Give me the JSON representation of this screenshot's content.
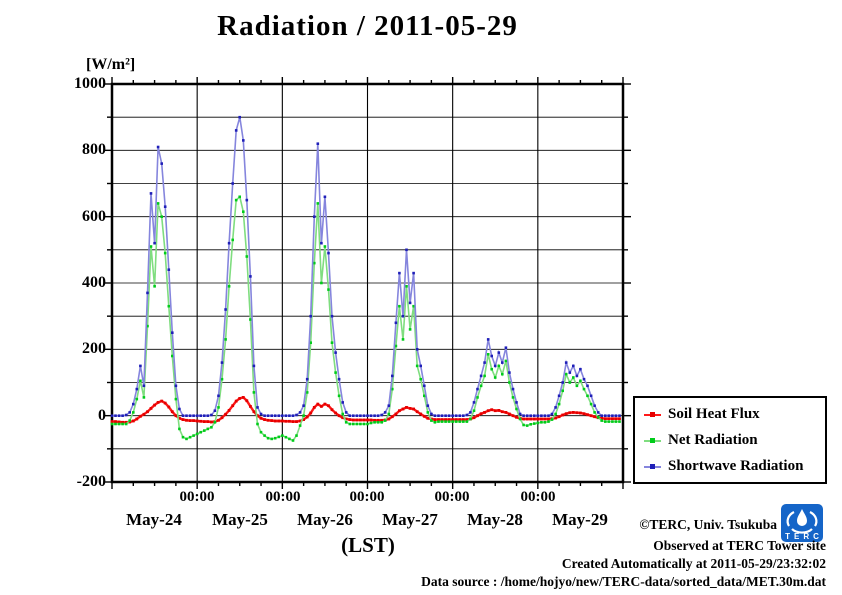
{
  "header": {
    "title": "Radiation / 2011-05-29"
  },
  "footer": {
    "lines": [
      "©TERC, Univ. Tsukuba",
      "Observed at TERC Tower site",
      "Created Automatically at 2011-05-29/23:32:02",
      "Data source : /home/hojyo/new/TERC-data/sorted_data/MET.30m.dat"
    ],
    "logo_text": "TERC",
    "logo_color": "#1565c8"
  },
  "chart_data": {
    "type": "line",
    "title": "Radiation / 2011-05-29",
    "ylabel": "[W/m²]",
    "xlabel": "(LST)",
    "ylim": [
      -200,
      1000
    ],
    "y_major_step": 200,
    "y_minor_step": 100,
    "grid": true,
    "legend_position": "right-bottom-outside",
    "points_per_day": 24,
    "x_unit": "hour",
    "xtick_label": "00:00",
    "day_labels": [
      "May-24",
      "May-25",
      "May-26",
      "May-27",
      "May-28",
      "May-29"
    ],
    "ytick_labels": [
      "1000",
      "800",
      "600",
      "400",
      "200",
      "0",
      "-200"
    ],
    "series": [
      {
        "name": "Soil Heat Flux",
        "line_color": "#ff1a1a",
        "marker_color": "#e60000",
        "line_width": 2.4,
        "marker_size": 2.8,
        "values": [
          -18,
          -18,
          -19,
          -20,
          -20,
          -19,
          -16,
          -10,
          -2,
          4,
          12,
          22,
          32,
          40,
          44,
          38,
          26,
          12,
          0,
          -8,
          -12,
          -14,
          -15,
          -15,
          -16,
          -17,
          -18,
          -18,
          -19,
          -18,
          -14,
          -6,
          4,
          16,
          30,
          44,
          52,
          55,
          45,
          28,
          12,
          0,
          -8,
          -12,
          -14,
          -15,
          -16,
          -16,
          -16,
          -17,
          -17,
          -18,
          -18,
          -16,
          -12,
          -4,
          8,
          25,
          35,
          28,
          35,
          30,
          18,
          8,
          0,
          -6,
          -10,
          -12,
          -13,
          -13,
          -13,
          -13,
          -13,
          -13,
          -14,
          -14,
          -14,
          -13,
          -10,
          -3,
          5,
          15,
          20,
          25,
          22,
          20,
          12,
          5,
          -2,
          -8,
          -10,
          -12,
          -12,
          -12,
          -12,
          -12,
          -12,
          -12,
          -12,
          -12,
          -12,
          -10,
          -6,
          0,
          6,
          10,
          15,
          18,
          15,
          16,
          12,
          10,
          5,
          0,
          -5,
          -8,
          -10,
          -10,
          -10,
          -10,
          -10,
          -10,
          -10,
          -10,
          -9,
          -7,
          -3,
          2,
          6,
          9,
          10,
          9,
          8,
          6,
          3,
          0,
          -3,
          -6,
          -8,
          -9,
          -9,
          -9,
          -9,
          -9
        ]
      },
      {
        "name": "Net Radiation",
        "line_color": "#7fdd7f",
        "marker_color": "#00cc1a",
        "line_width": 1.6,
        "marker_size": 2.6,
        "values": [
          -25,
          -25,
          -25,
          -25,
          -25,
          -15,
          10,
          50,
          105,
          55,
          270,
          510,
          390,
          640,
          600,
          490,
          330,
          180,
          50,
          -40,
          -65,
          -70,
          -65,
          -60,
          -55,
          -50,
          -45,
          -40,
          -35,
          -20,
          25,
          110,
          230,
          390,
          530,
          650,
          660,
          615,
          480,
          290,
          70,
          -25,
          -50,
          -60,
          -68,
          -70,
          -68,
          -64,
          -60,
          -65,
          -70,
          -75,
          -60,
          -30,
          0,
          70,
          220,
          460,
          640,
          400,
          510,
          380,
          220,
          130,
          60,
          5,
          -20,
          -25,
          -25,
          -25,
          -25,
          -25,
          -25,
          -22,
          -20,
          -20,
          -20,
          -15,
          5,
          80,
          210,
          330,
          230,
          390,
          260,
          330,
          150,
          110,
          60,
          10,
          -15,
          -20,
          -18,
          -18,
          -18,
          -18,
          -18,
          -18,
          -18,
          -18,
          -18,
          -10,
          15,
          55,
          90,
          120,
          185,
          140,
          115,
          150,
          125,
          165,
          100,
          55,
          20,
          -10,
          -28,
          -30,
          -26,
          -24,
          -22,
          -20,
          -20,
          -18,
          -12,
          5,
          35,
          75,
          125,
          100,
          115,
          90,
          105,
          80,
          60,
          35,
          10,
          -5,
          -15,
          -18,
          -18,
          -18,
          -18,
          -18
        ]
      },
      {
        "name": "Shortwave Radiation",
        "line_color": "#8585dd",
        "marker_color": "#1f1fb8",
        "line_width": 1.6,
        "marker_size": 2.6,
        "values": [
          0,
          0,
          0,
          0,
          2,
          10,
          35,
          80,
          150,
          90,
          370,
          670,
          520,
          810,
          760,
          630,
          440,
          250,
          90,
          20,
          0,
          0,
          0,
          0,
          0,
          0,
          0,
          0,
          2,
          15,
          60,
          160,
          320,
          520,
          700,
          860,
          900,
          830,
          650,
          420,
          150,
          25,
          5,
          0,
          0,
          0,
          0,
          0,
          0,
          0,
          0,
          0,
          2,
          10,
          30,
          110,
          300,
          600,
          820,
          520,
          660,
          490,
          300,
          190,
          110,
          40,
          10,
          0,
          0,
          0,
          0,
          0,
          0,
          0,
          0,
          0,
          2,
          10,
          30,
          120,
          280,
          430,
          300,
          500,
          340,
          430,
          200,
          150,
          90,
          30,
          5,
          0,
          0,
          0,
          0,
          0,
          0,
          0,
          0,
          0,
          2,
          10,
          40,
          80,
          120,
          160,
          230,
          180,
          150,
          190,
          160,
          205,
          130,
          80,
          40,
          5,
          0,
          0,
          0,
          0,
          0,
          0,
          0,
          0,
          5,
          25,
          60,
          100,
          160,
          130,
          150,
          120,
          140,
          110,
          90,
          60,
          30,
          10,
          0,
          0,
          0,
          0,
          0,
          0
        ]
      }
    ]
  }
}
